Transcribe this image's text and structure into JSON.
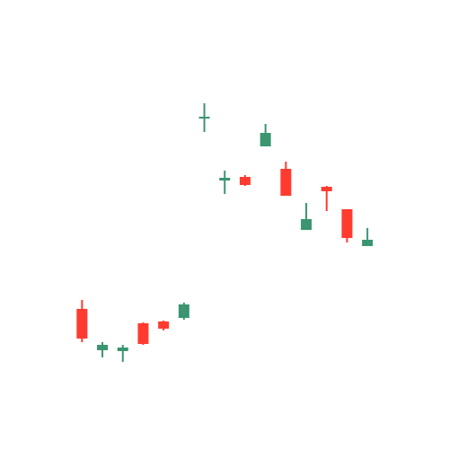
{
  "chart_data": {
    "type": "candlestick",
    "open": [
      31.2,
      22,
      21.8,
      28,
      28.4,
      29.2,
      73.6,
      59.8,
      60.6,
      67.4,
      62.4,
      48.8,
      58.4,
      53.4,
      45.2
    ],
    "high": [
      33.2,
      23.8,
      23.2,
      28.2,
      28.6,
      32.6,
      77,
      62,
      61,
      72.4,
      64,
      54.8,
      58.6,
      53.4,
      49.2
    ],
    "low": [
      23.8,
      20.4,
      19.4,
      23.2,
      26.4,
      28.8,
      70.6,
      56.8,
      58.6,
      67.4,
      56.4,
      48.8,
      53,
      46,
      45.2
    ],
    "close": [
      24.6,
      23.2,
      22.6,
      23.4,
      26.8,
      32.2,
      74,
      60.4,
      58.8,
      70.4,
      56.4,
      51.2,
      57.4,
      47,
      46.6
    ],
    "up_color": "#3a9570",
    "down_color": "#ff3b30",
    "ylim": [
      0,
      100
    ]
  }
}
